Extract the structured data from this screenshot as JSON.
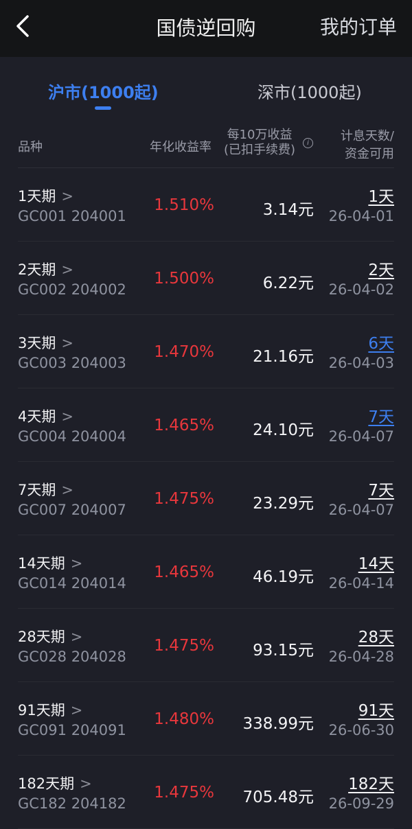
{
  "header": {
    "title": "国债逆回购",
    "orders": "我的订单"
  },
  "tabs": [
    {
      "label": "沪市(1000起)",
      "active": true
    },
    {
      "label": "深市(1000起)",
      "active": false
    }
  ],
  "columns": {
    "variety": "品种",
    "rate": "年化收益率",
    "income_line1": "每10万收益",
    "income_line2": "(已扣手续费)",
    "days_line1": "计息天数/",
    "days_line2": "资金可用"
  },
  "colors": {
    "accent": "#3d7ff0",
    "rate": "#e8373c"
  },
  "rows": [
    {
      "name": "1天期",
      "code": "GC001 204001",
      "rate": "1.510%",
      "income": "3.14元",
      "days": "1天",
      "date": "26-04-01",
      "highlight": false
    },
    {
      "name": "2天期",
      "code": "GC002 204002",
      "rate": "1.500%",
      "income": "6.22元",
      "days": "2天",
      "date": "26-04-02",
      "highlight": false
    },
    {
      "name": "3天期",
      "code": "GC003 204003",
      "rate": "1.470%",
      "income": "21.16元",
      "days": "6天",
      "date": "26-04-03",
      "highlight": true
    },
    {
      "name": "4天期",
      "code": "GC004 204004",
      "rate": "1.465%",
      "income": "24.10元",
      "days": "7天",
      "date": "26-04-07",
      "highlight": true
    },
    {
      "name": "7天期",
      "code": "GC007 204007",
      "rate": "1.475%",
      "income": "23.29元",
      "days": "7天",
      "date": "26-04-07",
      "highlight": false
    },
    {
      "name": "14天期",
      "code": "GC014 204014",
      "rate": "1.465%",
      "income": "46.19元",
      "days": "14天",
      "date": "26-04-14",
      "highlight": false
    },
    {
      "name": "28天期",
      "code": "GC028 204028",
      "rate": "1.475%",
      "income": "93.15元",
      "days": "28天",
      "date": "26-04-28",
      "highlight": false
    },
    {
      "name": "91天期",
      "code": "GC091 204091",
      "rate": "1.480%",
      "income": "338.99元",
      "days": "91天",
      "date": "26-06-30",
      "highlight": false
    },
    {
      "name": "182天期",
      "code": "GC182 204182",
      "rate": "1.475%",
      "income": "705.48元",
      "days": "182天",
      "date": "26-09-29",
      "highlight": false
    }
  ]
}
